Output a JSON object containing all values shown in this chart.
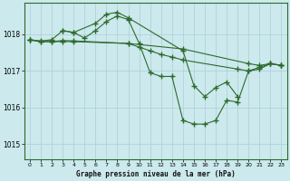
{
  "title": "Graphe pression niveau de la mer (hPa)",
  "background_color": "#cce9ed",
  "grid_color": "#aacfd6",
  "line_color": "#2d6a2d",
  "xlim": [
    -0.5,
    23.5
  ],
  "ylim": [
    1014.6,
    1018.85
  ],
  "xticks": [
    0,
    1,
    2,
    3,
    4,
    5,
    6,
    7,
    8,
    9,
    10,
    11,
    12,
    13,
    14,
    15,
    16,
    17,
    18,
    19,
    20,
    21,
    22,
    23
  ],
  "yticks": [
    1015,
    1016,
    1017,
    1018
  ],
  "series": [
    {
      "x": [
        0,
        1,
        2,
        3,
        4,
        9,
        14,
        20,
        21,
        22,
        23
      ],
      "y": [
        1017.85,
        1017.8,
        1017.8,
        1017.8,
        1017.8,
        1017.75,
        1017.6,
        1017.2,
        1017.15,
        1017.2,
        1017.15
      ]
    },
    {
      "x": [
        0,
        1,
        2,
        3,
        4,
        9,
        10,
        11,
        12,
        13,
        14,
        19,
        20,
        21,
        22,
        23
      ],
      "y": [
        1017.85,
        1017.8,
        1017.8,
        1017.83,
        1017.82,
        1017.75,
        1017.65,
        1017.55,
        1017.45,
        1017.38,
        1017.3,
        1017.05,
        1017.0,
        1017.05,
        1017.2,
        1017.15
      ]
    },
    {
      "x": [
        0,
        1,
        2,
        3,
        4,
        5,
        6,
        7,
        8,
        9,
        10,
        11,
        12,
        13,
        14,
        15,
        16,
        17,
        18,
        19,
        20,
        21,
        22,
        23
      ],
      "y": [
        1017.85,
        1017.82,
        1017.85,
        1018.1,
        1018.05,
        1017.9,
        1018.1,
        1018.35,
        1018.5,
        1018.4,
        1017.75,
        1016.95,
        1016.85,
        1016.85,
        1015.65,
        1015.55,
        1015.55,
        1015.65,
        1016.2,
        1016.15,
        1017.0,
        1017.1,
        1017.2,
        1017.15
      ]
    },
    {
      "x": [
        3,
        4,
        6,
        7,
        8,
        9,
        14,
        15,
        16,
        17,
        18,
        19
      ],
      "y": [
        1018.1,
        1018.05,
        1018.3,
        1018.55,
        1018.6,
        1018.45,
        1017.55,
        1016.6,
        1016.3,
        1016.55,
        1016.7,
        1016.3
      ]
    }
  ]
}
